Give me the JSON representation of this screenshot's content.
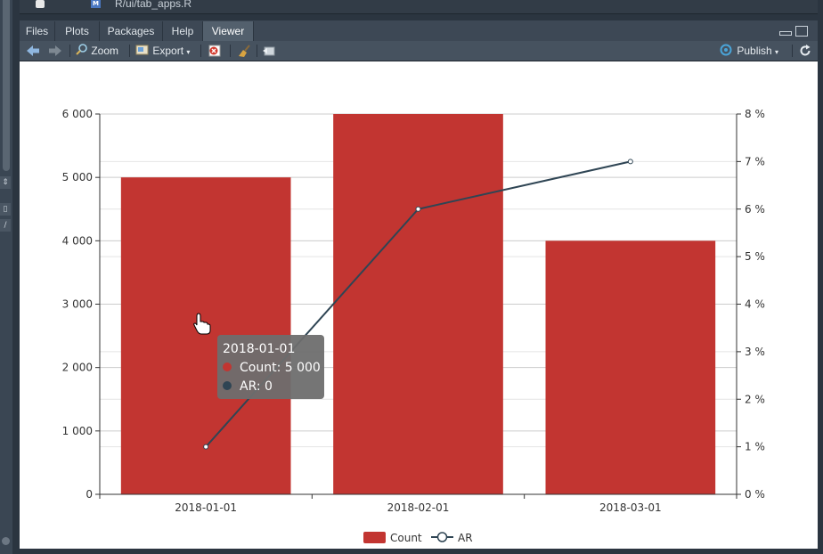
{
  "file_strip": {
    "path": "R/ui/tab_apps.R",
    "file_badge": "M"
  },
  "tabs": [
    {
      "label": "Files",
      "active": false
    },
    {
      "label": "Plots",
      "active": false
    },
    {
      "label": "Packages",
      "active": false
    },
    {
      "label": "Help",
      "active": false
    },
    {
      "label": "Viewer",
      "active": true
    }
  ],
  "toolbar": {
    "zoom_label": "Zoom",
    "export_label": "Export",
    "publish_label": "Publish"
  },
  "icons": [
    "back-arrow-icon",
    "forward-arrow-icon",
    "zoom-icon",
    "export-icon",
    "remove-icon",
    "clear-broom-icon",
    "popout-icon",
    "publish-icon",
    "refresh-icon",
    "minimize-icon",
    "maximize-icon",
    "hand-cursor-icon"
  ],
  "colors": {
    "bar": "#c23531",
    "line": "#2f4554",
    "tooltip_bg": "#6e6e6e"
  },
  "chart_data": {
    "type": "bar",
    "categories": [
      "2018-01-01",
      "2018-02-01",
      "2018-03-01"
    ],
    "series": [
      {
        "name": "Count",
        "type": "bar",
        "axis": "left",
        "values": [
          5000,
          6000,
          4000
        ]
      },
      {
        "name": "AR",
        "type": "line",
        "axis": "right",
        "values": [
          0.01,
          0.06,
          0.07
        ]
      }
    ],
    "y_left": {
      "ticks": [
        "0",
        "1 000",
        "2 000",
        "3 000",
        "4 000",
        "5 000",
        "6 000"
      ],
      "ylim": [
        0,
        6000
      ]
    },
    "y_right": {
      "ticks": [
        "0 %",
        "1 %",
        "2 %",
        "3 %",
        "4 %",
        "5 %",
        "6 %",
        "7 %",
        "8 %"
      ],
      "ylim": [
        0,
        0.08
      ]
    },
    "grid": true,
    "legend_position": "bottom",
    "tooltip": {
      "title": "2018-01-01",
      "rows": [
        {
          "label": "Count: 5 000",
          "color": "#c23531"
        },
        {
          "label": "AR: 0",
          "color": "#2f4554"
        }
      ]
    }
  }
}
